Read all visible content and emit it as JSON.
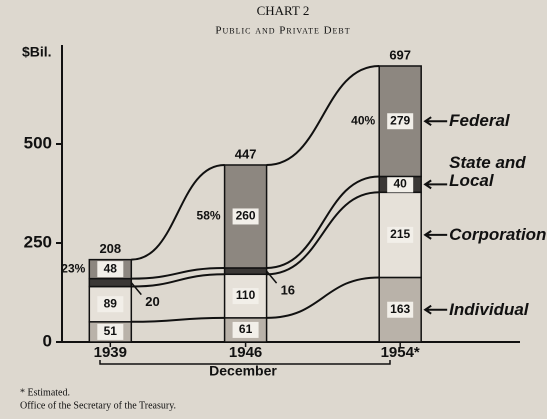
{
  "chart_data": {
    "type": "bar",
    "stacked": true,
    "title": "CHART 2",
    "subtitle": "Public and Private Debt",
    "y_label": "$Bil.",
    "x_label": "December",
    "x": [
      1939,
      1946,
      1954
    ],
    "xticks": [
      1939,
      1946,
      {
        "value": 1954,
        "label": "1954*"
      }
    ],
    "xlim": [
      1936.5,
      1960.2
    ],
    "ylim": [
      0,
      750
    ],
    "yticks": [
      0,
      250,
      500
    ],
    "series": [
      {
        "name": "Individual",
        "color": "#b9b2a9",
        "values": [
          51,
          61,
          163
        ]
      },
      {
        "name": "Corporation",
        "color": "#e6e1d9",
        "values": [
          89,
          110,
          215
        ]
      },
      {
        "name": "State and Local",
        "color": "#3b3836",
        "values": [
          20,
          16,
          40
        ]
      },
      {
        "name": "Federal",
        "color": "#8d8780",
        "values": [
          48,
          260,
          279
        ]
      }
    ],
    "totals": [
      208,
      447,
      697
    ],
    "annotations": [
      "23%",
      "58%",
      "40%"
    ],
    "notes": [
      "* Estimated.",
      "Office of the Secretary of the Treasury."
    ]
  }
}
